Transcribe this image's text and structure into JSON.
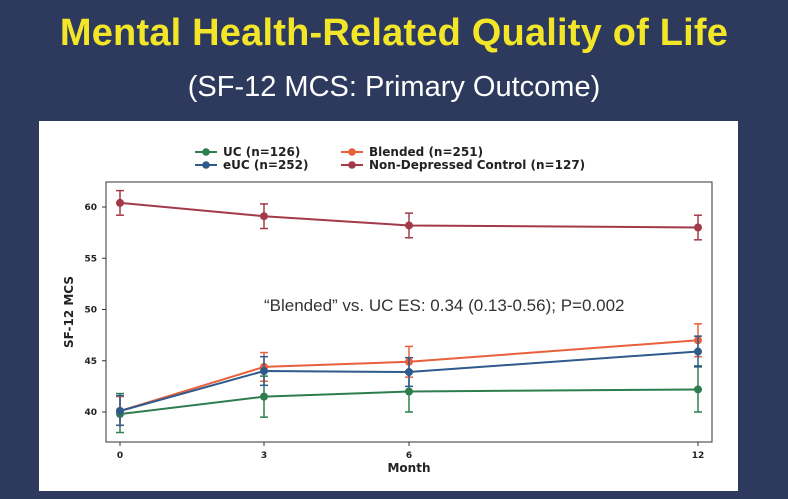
{
  "slide": {
    "title": "Mental Health-Related Quality of Life",
    "subtitle": "(SF-12 MCS: Primary Outcome)"
  },
  "chart_data": {
    "type": "line",
    "title": "",
    "xlabel": "Month",
    "ylabel": "SF-12 MCS",
    "x": [
      0,
      3,
      6,
      12
    ],
    "x_ticks": [
      "0",
      "3",
      "6",
      "12"
    ],
    "y_ticks": [
      "40",
      "45",
      "50",
      "55",
      "60"
    ],
    "ylim": [
      38,
      62
    ],
    "xlim": [
      0,
      12
    ],
    "grid": false,
    "legend_position": "top",
    "annotation": "“Blended” vs. UC  ES: 0.34 (0.13-0.56); P=0.002",
    "series": [
      {
        "name": "UC (n=126)",
        "color": "#2e7d4f",
        "values": [
          39.8,
          41.5,
          42.0,
          42.2
        ],
        "err_low": [
          38.0,
          39.5,
          40.0,
          40.0
        ],
        "err_high": [
          41.8,
          43.5,
          44.0,
          44.5
        ]
      },
      {
        "name": "Blended (n=251)",
        "color": "#e8603c",
        "values": [
          40.1,
          44.4,
          44.9,
          47.0
        ],
        "err_low": [
          38.7,
          43.0,
          43.4,
          45.4
        ],
        "err_high": [
          41.5,
          45.8,
          46.4,
          48.6
        ]
      },
      {
        "name": "eUC (n=252)",
        "color": "#2f5a8c",
        "values": [
          40.1,
          44.0,
          43.9,
          45.9
        ],
        "err_low": [
          38.7,
          42.6,
          42.5,
          44.4
        ],
        "err_high": [
          41.6,
          45.4,
          45.3,
          47.4
        ]
      },
      {
        "name": "Non-Depressed Control (n=127)",
        "color": "#a33a4a",
        "values": [
          60.4,
          59.1,
          58.2,
          58.0
        ],
        "err_low": [
          59.2,
          57.9,
          57.0,
          56.8
        ],
        "err_high": [
          61.6,
          60.3,
          59.4,
          59.2
        ]
      }
    ]
  }
}
